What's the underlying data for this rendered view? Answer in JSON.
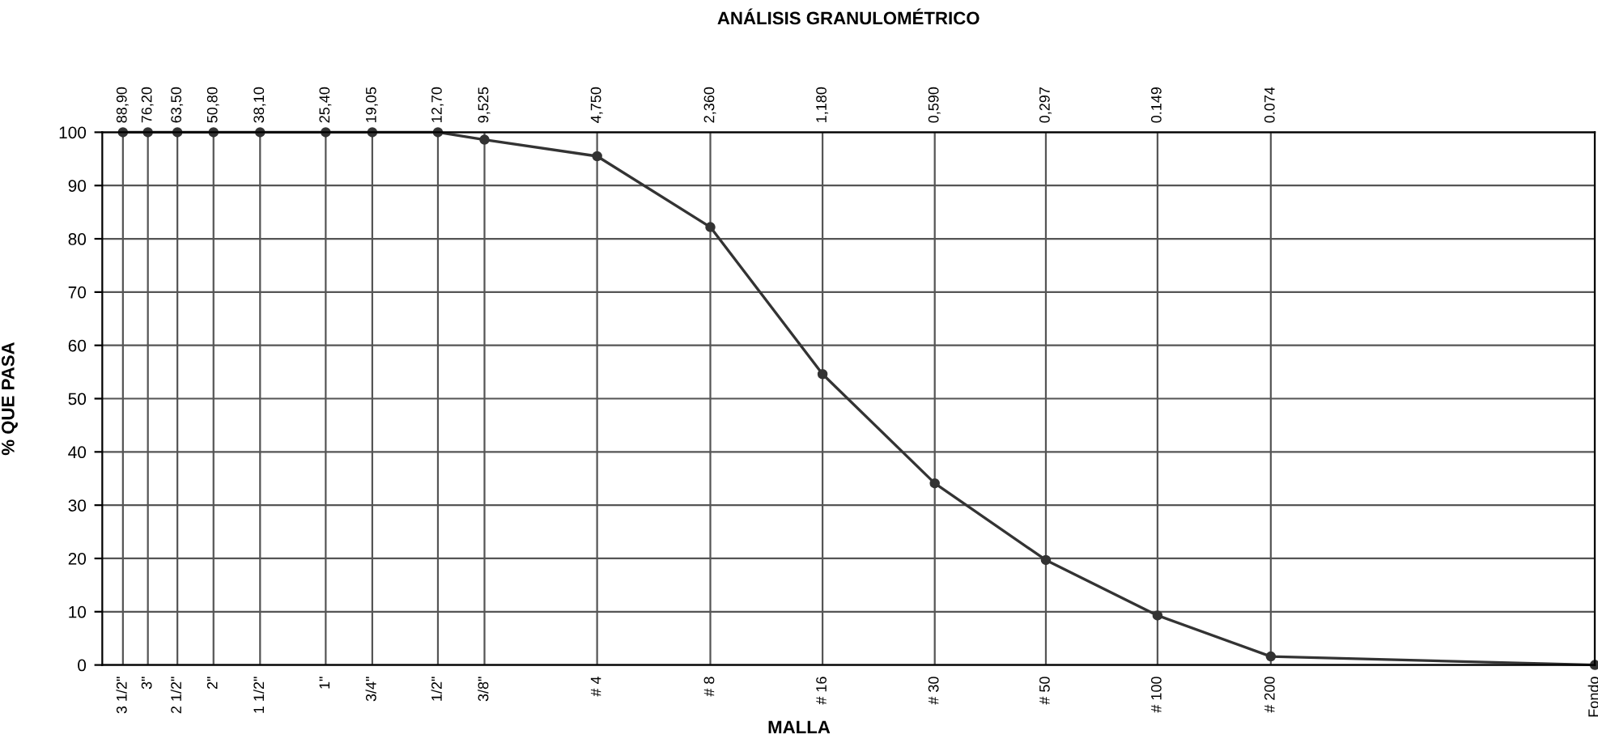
{
  "chart_data": {
    "type": "line",
    "title": "ANÁLISIS GRANULOMÉTRICO",
    "xlabel": "MALLA",
    "ylabel": "% QUE PASA",
    "log": "x",
    "grid": true,
    "marker": "circle",
    "line_style": "solid",
    "x": [
      88.9,
      76.2,
      63.5,
      50.8,
      38.1,
      25.4,
      19.05,
      12.7,
      9.525,
      4.75,
      2.36,
      1.18,
      0.59,
      0.297,
      0.149,
      0.074,
      0.01
    ],
    "series": [
      {
        "color": "#333333",
        "values": [
          100,
          100,
          100,
          100,
          100,
          100,
          100,
          100,
          98.6,
          95.5,
          82.2,
          54.6,
          34.1,
          19.7,
          9.3,
          1.6,
          0
        ]
      }
    ],
    "xlim": [
      101,
      0.01
    ],
    "xticks": [
      {
        "value": 88.9,
        "label": "88,90"
      },
      {
        "value": 76.2,
        "label": "76,20"
      },
      {
        "value": 63.5,
        "label": "63,50"
      },
      {
        "value": 50.8,
        "label": "50,80"
      },
      {
        "value": 38.1,
        "label": "38,10"
      },
      {
        "value": 25.4,
        "label": "25,40"
      },
      {
        "value": 19.05,
        "label": "19,05"
      },
      {
        "value": 12.7,
        "label": "12,70"
      },
      {
        "value": 9.525,
        "label": "9,525"
      },
      {
        "value": 4.75,
        "label": "4,750"
      },
      {
        "value": 2.36,
        "label": "2,360"
      },
      {
        "value": 1.18,
        "label": "1,180"
      },
      {
        "value": 0.59,
        "label": "0,590"
      },
      {
        "value": 0.297,
        "label": "0,297"
      },
      {
        "value": 0.149,
        "label": "0.149"
      },
      {
        "value": 0.074,
        "label": "0.074"
      },
      {
        "value": 0.01,
        "label": null
      }
    ],
    "annotations": [
      "3 1/2\"",
      "3\"",
      "2 1/2\"",
      "2\"",
      "1 1/2\"",
      "1\"",
      "3/4\"",
      "1/2\"",
      "3/8\"",
      "# 4",
      "# 8",
      "# 16",
      "# 30",
      "# 50",
      "# 100",
      "# 200",
      "Fondo"
    ],
    "ylim": [
      0,
      100
    ],
    "yticks": [
      0,
      10,
      20,
      30,
      40,
      50,
      60,
      70,
      80,
      90,
      100
    ]
  }
}
